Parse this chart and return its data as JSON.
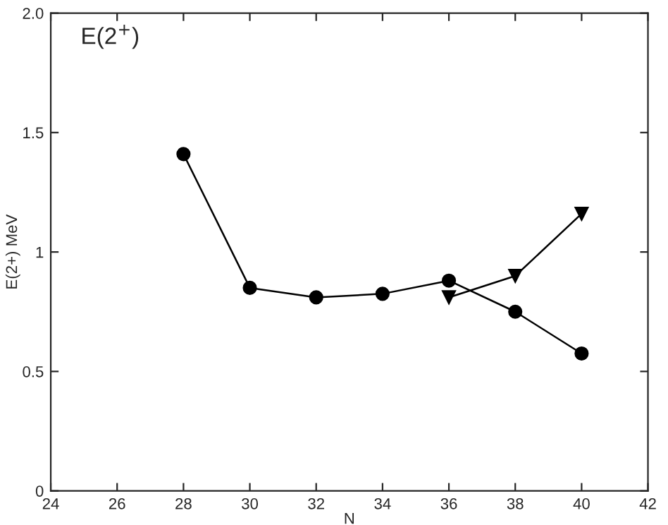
{
  "chart_data": {
    "type": "line",
    "xlabel": "N",
    "ylabel": "E(2+) MeV",
    "annotations": [
      "E(2$^{+}$)"
    ],
    "xlim": [
      24,
      42
    ],
    "xticks": [
      24,
      26,
      28,
      30,
      32,
      34,
      36,
      38,
      40,
      42
    ],
    "ylim": [
      0,
      2
    ],
    "yticks": [
      0,
      0.5,
      1,
      1.5,
      {
        "value": 2,
        "label": "2.0"
      }
    ],
    "grid": false,
    "legend": false,
    "series": [
      {
        "color": "#000000",
        "marker": "circle",
        "x": [
          28,
          30,
          32,
          34,
          36,
          38,
          40
        ],
        "values": [
          1.41,
          0.85,
          0.81,
          0.825,
          0.88,
          0.75,
          0.575
        ]
      },
      {
        "color": "#000000",
        "marker": "triangle",
        "x": [
          36,
          38,
          40
        ],
        "values": [
          0.81,
          0.9,
          1.16
        ]
      }
    ]
  }
}
